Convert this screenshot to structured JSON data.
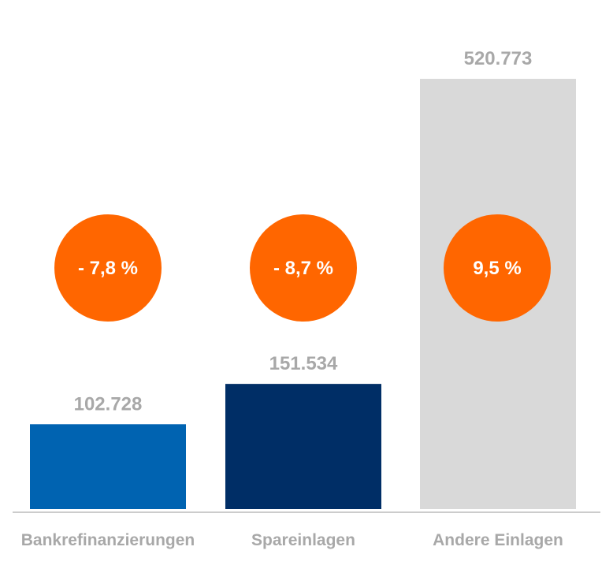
{
  "chart_data": {
    "type": "bar",
    "title": "",
    "xlabel": "",
    "ylabel": "",
    "categories": [
      "Bankrefinanzierungen",
      "Spareinlagen",
      "Andere Einlagen"
    ],
    "values": [
      102728,
      151534,
      520773
    ],
    "value_labels": [
      "102.728",
      "151.534",
      "520.773"
    ],
    "change_labels": [
      "- 7,8 %",
      "- 8,7 %",
      "9,5 %"
    ],
    "ylim": [
      0,
      550000
    ],
    "grid": false,
    "legend": "none",
    "colors": {
      "bars": [
        "#0063b1",
        "#002e66",
        "#d9d9d9"
      ],
      "badge": "#ff6600",
      "labels": "#a8a8a8",
      "baseline": "#bcbcbc"
    }
  }
}
